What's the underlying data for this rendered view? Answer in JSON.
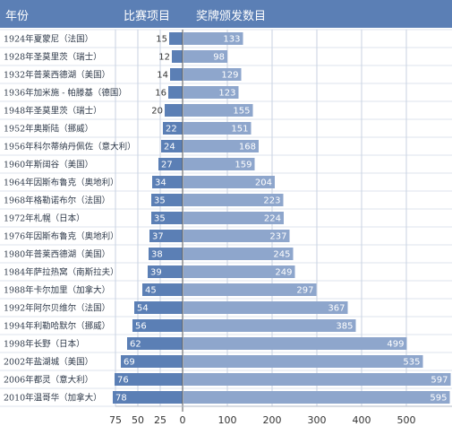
{
  "header": {
    "year_col": "年份",
    "events_col": "比赛项目",
    "medals_col": "奖牌颁发数目"
  },
  "colors": {
    "header_bg": "#5b7fb5",
    "events_bar": "#5b7fb5",
    "medals_bar": "#8ea6cc",
    "grid": "#c8d2e2",
    "row_divider": "#dde3ec"
  },
  "chart_data": {
    "type": "bar",
    "layout": "butterfly-horizontal",
    "categories": [
      "1924年夏蒙尼（法国）",
      "1928年圣莫里茨（瑞士）",
      "1932年普莱西德湖（美国）",
      "1936年加米施 - 帕滕基（德国）",
      "1948年圣莫里茨（瑞士）",
      "1952年奥斯陆（挪威）",
      "1956年科尔蒂纳丹佩佐（意大利）",
      "1960年斯阔谷（美国）",
      "1964年因斯布鲁克（奥地利）",
      "1968年格勒诺布尔（法国）",
      "1972年札幌（日本）",
      "1976年因斯布鲁克（奥地利）",
      "1980年普莱西德湖（美国）",
      "1984年萨拉热窝（南斯拉夫）",
      "1988年卡尔加里（加拿大）",
      "1992年阿尔贝维尔（法国）",
      "1994年利勒哈默尔（挪威）",
      "1998年长野（日本）",
      "2002年盐湖城（美国）",
      "2006年都灵（意大利）",
      "2010年温哥华（加拿大）"
    ],
    "series": [
      {
        "name": "比赛项目",
        "values": [
          15,
          12,
          14,
          16,
          20,
          22,
          24,
          27,
          34,
          35,
          35,
          37,
          38,
          39,
          45,
          54,
          56,
          62,
          69,
          76,
          78
        ]
      },
      {
        "name": "奖牌颁发数目",
        "values": [
          133,
          98,
          129,
          123,
          155,
          151,
          168,
          159,
          204,
          223,
          224,
          237,
          245,
          249,
          297,
          367,
          385,
          499,
          535,
          597,
          595
        ]
      }
    ],
    "left_axis": {
      "ticks": [
        75,
        50,
        25
      ],
      "range": [
        0,
        80
      ]
    },
    "right_axis": {
      "ticks": [
        0,
        100,
        200,
        300,
        400,
        500
      ],
      "range": [
        0,
        600
      ]
    },
    "grid": true
  }
}
